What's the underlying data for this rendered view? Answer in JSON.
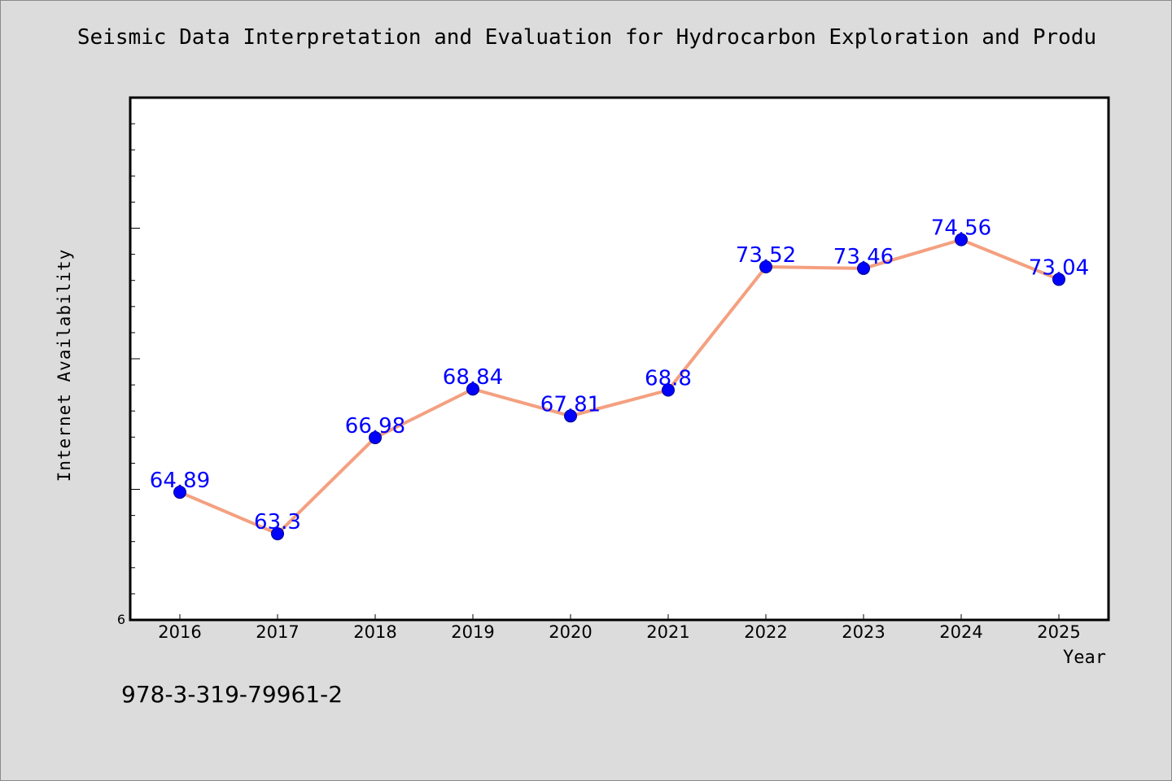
{
  "chart_data": {
    "type": "line",
    "title": "Seismic Data Interpretation and Evaluation for Hydrocarbon Exploration and Produ",
    "xlabel": "Year",
    "ylabel": "Internet Availability",
    "categories": [
      "2016",
      "2017",
      "2018",
      "2019",
      "2020",
      "2021",
      "2022",
      "2023",
      "2024",
      "2025"
    ],
    "series": [
      {
        "name": "",
        "values": [
          64.89,
          63.3,
          66.98,
          68.84,
          67.81,
          68.8,
          73.52,
          73.46,
          74.56,
          73.04
        ],
        "labels": [
          "64.89",
          "63.3",
          "66.98",
          "68.84",
          "67.81",
          "68.8",
          "73.52",
          "73.46",
          "74.56",
          "73.04"
        ]
      }
    ],
    "ylim": [
      60,
      80
    ],
    "y_tick_labels": [
      "6"
    ],
    "grid": false,
    "legend": "none",
    "line_color": "#f4a080",
    "marker_color": "#0000ff",
    "label_color": "#0000ff"
  },
  "footer": {
    "code": "978-3-319-79961-2"
  }
}
